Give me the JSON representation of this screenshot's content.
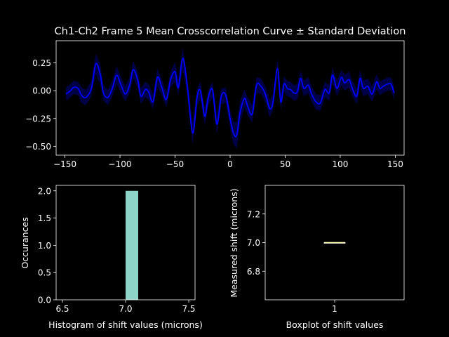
{
  "chart_data": [
    {
      "type": "line",
      "title": "Ch1-Ch2 Frame 5 Mean Crosscorrelation Curve ± Standard Deviation",
      "xlabel": "",
      "ylabel": "",
      "xlim": [
        -158,
        158
      ],
      "ylim": [
        -0.58,
        0.45
      ],
      "xticks": [
        -150,
        -100,
        -50,
        0,
        50,
        100,
        150
      ],
      "xtick_labels": [
        "−150",
        "−100",
        "−50",
        "0",
        "50",
        "100",
        "150"
      ],
      "yticks": [
        -0.5,
        -0.25,
        0,
        0.25
      ],
      "ytick_labels": [
        "−0.50",
        "−0.25",
        "0.00",
        "0.25"
      ],
      "grid": false,
      "line_color": "#0000ff",
      "band_color": "#0000ff",
      "series": [
        {
          "x": [
            -149,
            -145,
            -142,
            -138,
            -135,
            -131,
            -126,
            -122,
            -118,
            -115,
            -111,
            -107,
            -103,
            -99,
            -95,
            -91,
            -88,
            -84,
            -81,
            -77,
            -74,
            -70,
            -66,
            -62,
            -58,
            -54,
            -50,
            -47,
            -43,
            -39,
            -34,
            -30,
            -27,
            -23,
            -20,
            -16,
            -12,
            -8,
            -4,
            0,
            3,
            6,
            9,
            13,
            16,
            20,
            24,
            28,
            32,
            36,
            39,
            43,
            46,
            49,
            52,
            55,
            58,
            61,
            64,
            67,
            71,
            74,
            78,
            82,
            86,
            90,
            93,
            97,
            101,
            104,
            108,
            111,
            115,
            118,
            121,
            125,
            129,
            133,
            136,
            139,
            143,
            146,
            149
          ],
          "y": [
            -0.03,
            0.0,
            0.03,
            0.02,
            -0.04,
            -0.06,
            0.02,
            0.24,
            0.15,
            -0.02,
            -0.06,
            0.02,
            0.14,
            0.05,
            -0.03,
            0.06,
            0.19,
            0.1,
            -0.05,
            0.01,
            -0.01,
            -0.1,
            0.12,
            0.03,
            -0.08,
            0.1,
            0.17,
            0.03,
            0.29,
            0.05,
            -0.38,
            -0.06,
            0.0,
            -0.23,
            -0.07,
            0.01,
            -0.3,
            -0.05,
            -0.04,
            -0.25,
            -0.38,
            -0.4,
            -0.2,
            -0.07,
            -0.14,
            -0.21,
            0.05,
            0.04,
            -0.03,
            -0.16,
            -0.1,
            0.2,
            -0.1,
            0.06,
            0.02,
            0.01,
            -0.02,
            -0.01,
            0.11,
            0.02,
            0.05,
            -0.03,
            -0.1,
            -0.11,
            0.01,
            -0.02,
            0.14,
            0.02,
            0.12,
            0.07,
            0.1,
            0.02,
            -0.05,
            0.11,
            0.02,
            0.04,
            -0.03,
            0.08,
            0.02,
            0.04,
            0.06,
            0.06,
            -0.02
          ],
          "std": [
            0.06,
            0.06,
            0.06,
            0.06,
            0.07,
            0.07,
            0.07,
            0.09,
            0.09,
            0.07,
            0.07,
            0.07,
            0.08,
            0.07,
            0.07,
            0.07,
            0.08,
            0.07,
            0.07,
            0.07,
            0.07,
            0.07,
            0.08,
            0.07,
            0.07,
            0.07,
            0.09,
            0.07,
            0.1,
            0.08,
            0.1,
            0.08,
            0.08,
            0.08,
            0.07,
            0.07,
            0.09,
            0.07,
            0.07,
            0.08,
            0.1,
            0.12,
            0.1,
            0.08,
            0.08,
            0.08,
            0.07,
            0.07,
            0.07,
            0.08,
            0.07,
            0.08,
            0.07,
            0.07,
            0.07,
            0.07,
            0.07,
            0.07,
            0.07,
            0.07,
            0.07,
            0.07,
            0.07,
            0.07,
            0.07,
            0.07,
            0.07,
            0.07,
            0.07,
            0.07,
            0.07,
            0.07,
            0.07,
            0.07,
            0.07,
            0.07,
            0.07,
            0.07,
            0.06,
            0.06,
            0.06,
            0.06,
            0.06
          ]
        }
      ]
    },
    {
      "type": "bar",
      "xlabel": "Histogram of shift values (microns)",
      "ylabel": "Occurances",
      "xlim": [
        6.45,
        7.55
      ],
      "ylim": [
        0,
        2.1
      ],
      "xticks": [
        6.5,
        7.0,
        7.5
      ],
      "xtick_labels": [
        "6.5",
        "7.0",
        "7.5"
      ],
      "yticks": [
        0,
        0.5,
        1.0,
        1.5,
        2.0
      ],
      "ytick_labels": [
        "0.0",
        "0.5",
        "1.0",
        "1.5",
        "2.0"
      ],
      "bins": [
        {
          "left": 7.0,
          "right": 7.1,
          "count": 2
        }
      ],
      "bar_color": "#8dd3c7"
    },
    {
      "type": "boxplot",
      "xlabel": "Boxplot of shift values",
      "ylabel": "Measured shift (microns)",
      "xlim": [
        0.5,
        1.5
      ],
      "ylim": [
        6.6,
        7.4
      ],
      "xticks": [
        1
      ],
      "xtick_labels": [
        "1"
      ],
      "yticks": [
        6.8,
        7.0,
        7.2
      ],
      "ytick_labels": [
        "6.8",
        "7.0",
        "7.2"
      ],
      "boxes": [
        {
          "x": 1,
          "min": 7.0,
          "q1": 7.0,
          "median": 7.0,
          "q3": 7.0,
          "max": 7.0
        }
      ],
      "median_color": "#ffffb3"
    }
  ]
}
